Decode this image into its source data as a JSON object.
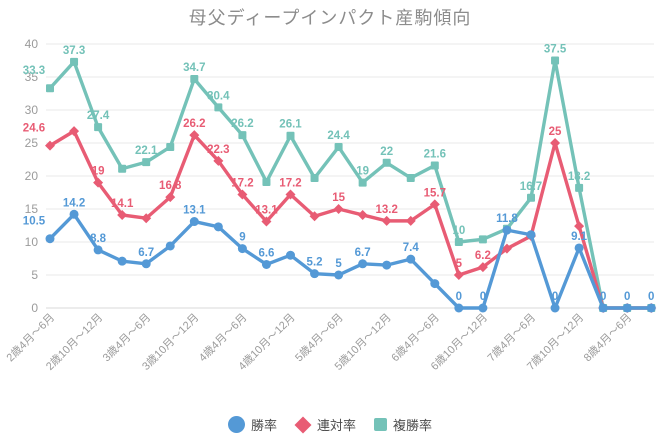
{
  "title": "母父ディープインパクト産駒傾向",
  "colors": {
    "win": "#5499d6",
    "quinella": "#e85c74",
    "show": "#74c2b8",
    "grid": "#eaeaea",
    "axis_line": "#d8d8d8",
    "tick_text": "#9b9b9b",
    "title_text": "#8c8c8c",
    "legend_text": "#4b4b4b"
  },
  "chart_data": {
    "type": "line",
    "title": "母父ディープインパクト産駒傾向",
    "ylim": [
      0,
      40
    ],
    "y_ticks": [
      0,
      5,
      10,
      15,
      20,
      25,
      30,
      35,
      40
    ],
    "grid": "horizontal",
    "legend_position": "bottom",
    "num_points": 26,
    "x_tick_every": 2,
    "x_tick_labels": [
      "2歳4月〜6月",
      "2歳10月〜12月",
      "3歳4月〜6月",
      "3歳10月〜12月",
      "4歳4月〜6月",
      "4歳10月〜12月",
      "5歳4月〜6月",
      "5歳10月〜12月",
      "6歳4月〜6月",
      "6歳10月〜12月",
      "7歳4月〜6月",
      "7歳10月〜12月",
      "8歳4月〜6月"
    ],
    "series": [
      {
        "name": "勝率",
        "marker": "circle",
        "color": "#5499d6",
        "values": [
          10.5,
          14.2,
          8.8,
          7.1,
          6.7,
          9.4,
          13.1,
          12.3,
          9,
          6.6,
          8,
          5.2,
          5,
          6.7,
          6.5,
          7.4,
          3.7,
          0,
          0,
          11.8,
          11.1,
          0,
          9.1,
          0,
          0,
          0
        ],
        "point_labels": [
          "10.5",
          "14.2",
          "8.8",
          null,
          "6.7",
          null,
          "13.1",
          null,
          "9",
          "6.6",
          null,
          "5.2",
          "5",
          "6.7",
          null,
          "7.4",
          null,
          "0",
          "0",
          "11.8",
          null,
          "0",
          "9.1",
          "0",
          "0",
          "0"
        ]
      },
      {
        "name": "連対率",
        "marker": "diamond",
        "color": "#e85c74",
        "values": [
          24.6,
          26.8,
          19,
          14.1,
          13.6,
          16.8,
          26.2,
          22.3,
          17.2,
          13.1,
          17.2,
          13.9,
          15,
          14.1,
          13.2,
          13.2,
          15.7,
          5,
          6.2,
          9,
          10.9,
          25,
          12.4,
          0,
          0,
          0
        ],
        "point_labels": [
          "24.6",
          null,
          "19",
          "14.1",
          null,
          "16.8",
          "26.2",
          "22.3",
          "17.2",
          "13.1",
          "17.2",
          null,
          "15",
          null,
          "13.2",
          null,
          "15.7",
          "5",
          "6.2",
          null,
          null,
          "25",
          null,
          null,
          null,
          null
        ]
      },
      {
        "name": "複勝率",
        "marker": "square",
        "color": "#74c2b8",
        "values": [
          33.3,
          37.3,
          27.4,
          21.1,
          22.1,
          24.4,
          34.7,
          30.4,
          26.2,
          19.1,
          26.1,
          19.7,
          24.4,
          19,
          22,
          19.7,
          21.6,
          10,
          10.4,
          12,
          16.7,
          37.5,
          18.2,
          0,
          0,
          0
        ],
        "point_labels": [
          "33.3",
          "37.3",
          "27.4",
          null,
          "22.1",
          null,
          "34.7",
          "30.4",
          "26.2",
          null,
          "26.1",
          null,
          "24.4",
          "19",
          "22",
          null,
          "21.6",
          "10",
          null,
          null,
          "16.7",
          "37.5",
          "18.2",
          null,
          null,
          null
        ]
      }
    ]
  }
}
